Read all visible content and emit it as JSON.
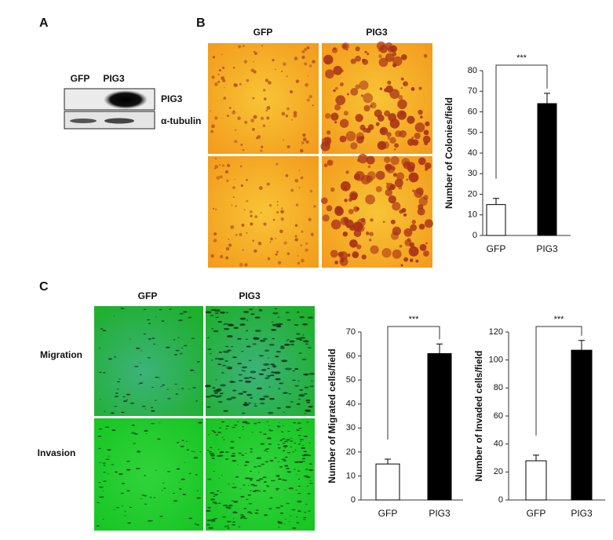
{
  "figure": {
    "panel_labels": [
      "A",
      "B",
      "C"
    ],
    "blot": {
      "lanes": [
        "GFP",
        "PIG3"
      ],
      "rows": [
        "PIG3",
        "α-tubulin"
      ]
    },
    "panel_b": {
      "columns": [
        "GFP",
        "PIG3"
      ]
    },
    "panel_c": {
      "columns": [
        "GFP",
        "PIG3"
      ],
      "rows": [
        "Migration",
        "Invasion"
      ]
    }
  },
  "chart_data": [
    {
      "type": "bar",
      "y_label": "Number of Colonies/field",
      "categories": [
        "GFP",
        "PIG3"
      ],
      "values": [
        15,
        64
      ],
      "errors": [
        3,
        5
      ],
      "colors": [
        "#ffffff",
        "#000000"
      ],
      "ylim": [
        0,
        80
      ],
      "yticks": [
        0,
        10,
        20,
        30,
        40,
        50,
        60,
        70,
        80
      ],
      "annotation": "***"
    },
    {
      "type": "bar",
      "y_label": "Number of Migrated cells/field",
      "categories": [
        "GFP",
        "PIG3"
      ],
      "values": [
        15,
        61
      ],
      "errors": [
        2,
        4
      ],
      "colors": [
        "#ffffff",
        "#000000"
      ],
      "ylim": [
        0,
        70
      ],
      "yticks": [
        0,
        10,
        20,
        30,
        40,
        50,
        60,
        70
      ],
      "annotation": "***"
    },
    {
      "type": "bar",
      "y_label": "Number of Invaded cells/field",
      "categories": [
        "GFP",
        "PIG3"
      ],
      "values": [
        28,
        107
      ],
      "errors": [
        4,
        7
      ],
      "colors": [
        "#ffffff",
        "#000000"
      ],
      "ylim": [
        0,
        120
      ],
      "yticks": [
        0,
        20,
        40,
        60,
        80,
        100,
        120
      ],
      "annotation": "***"
    }
  ]
}
